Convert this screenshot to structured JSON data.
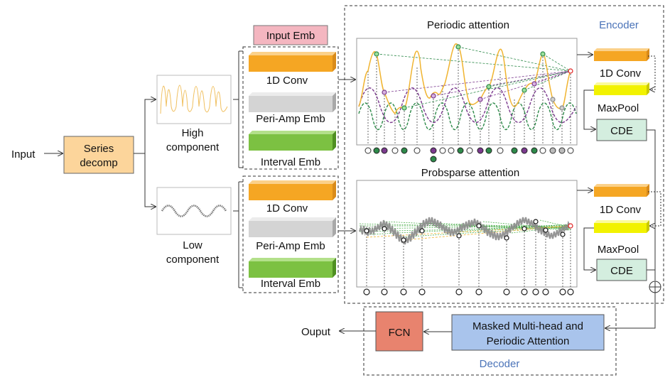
{
  "input_label": "Input",
  "output_label": "Ouput",
  "series_decomp": [
    "Series",
    "decomp"
  ],
  "high_component": [
    "High",
    "component"
  ],
  "low_component": [
    "Low",
    "component"
  ],
  "input_emb_title": "Input Emb",
  "emb_labels": {
    "conv": "1D Conv",
    "periamp": "Peri-Amp Emb",
    "interval": "Interval Emb"
  },
  "encoder": {
    "title": "Encoder",
    "periodic_attention": "Periodic attention",
    "probsparse_attention": "Probsparse attention",
    "conv_label": "1D Conv",
    "maxpool_label": "MaxPool",
    "cde_label": "CDE"
  },
  "decoder": {
    "title": "Decoder",
    "attention_block": [
      "Masked Multi-head and",
      "Periodic Attention"
    ],
    "fcn_label": "FCN"
  },
  "colors": {
    "orange": "#f5a623",
    "gray": "#d4d4d4",
    "green": "#7cc142",
    "yellow": "#f2f200",
    "cde": "#d4eedf",
    "series_decomp": "#fcd59b",
    "input_emb_bg": "#f4b6c0",
    "fcn": "#e8836e",
    "decoder_attn": "#a9c4ec",
    "accent_blue": "#4a73b8",
    "purple": "#7b3a8e",
    "dark_green": "#2e8a4a"
  }
}
